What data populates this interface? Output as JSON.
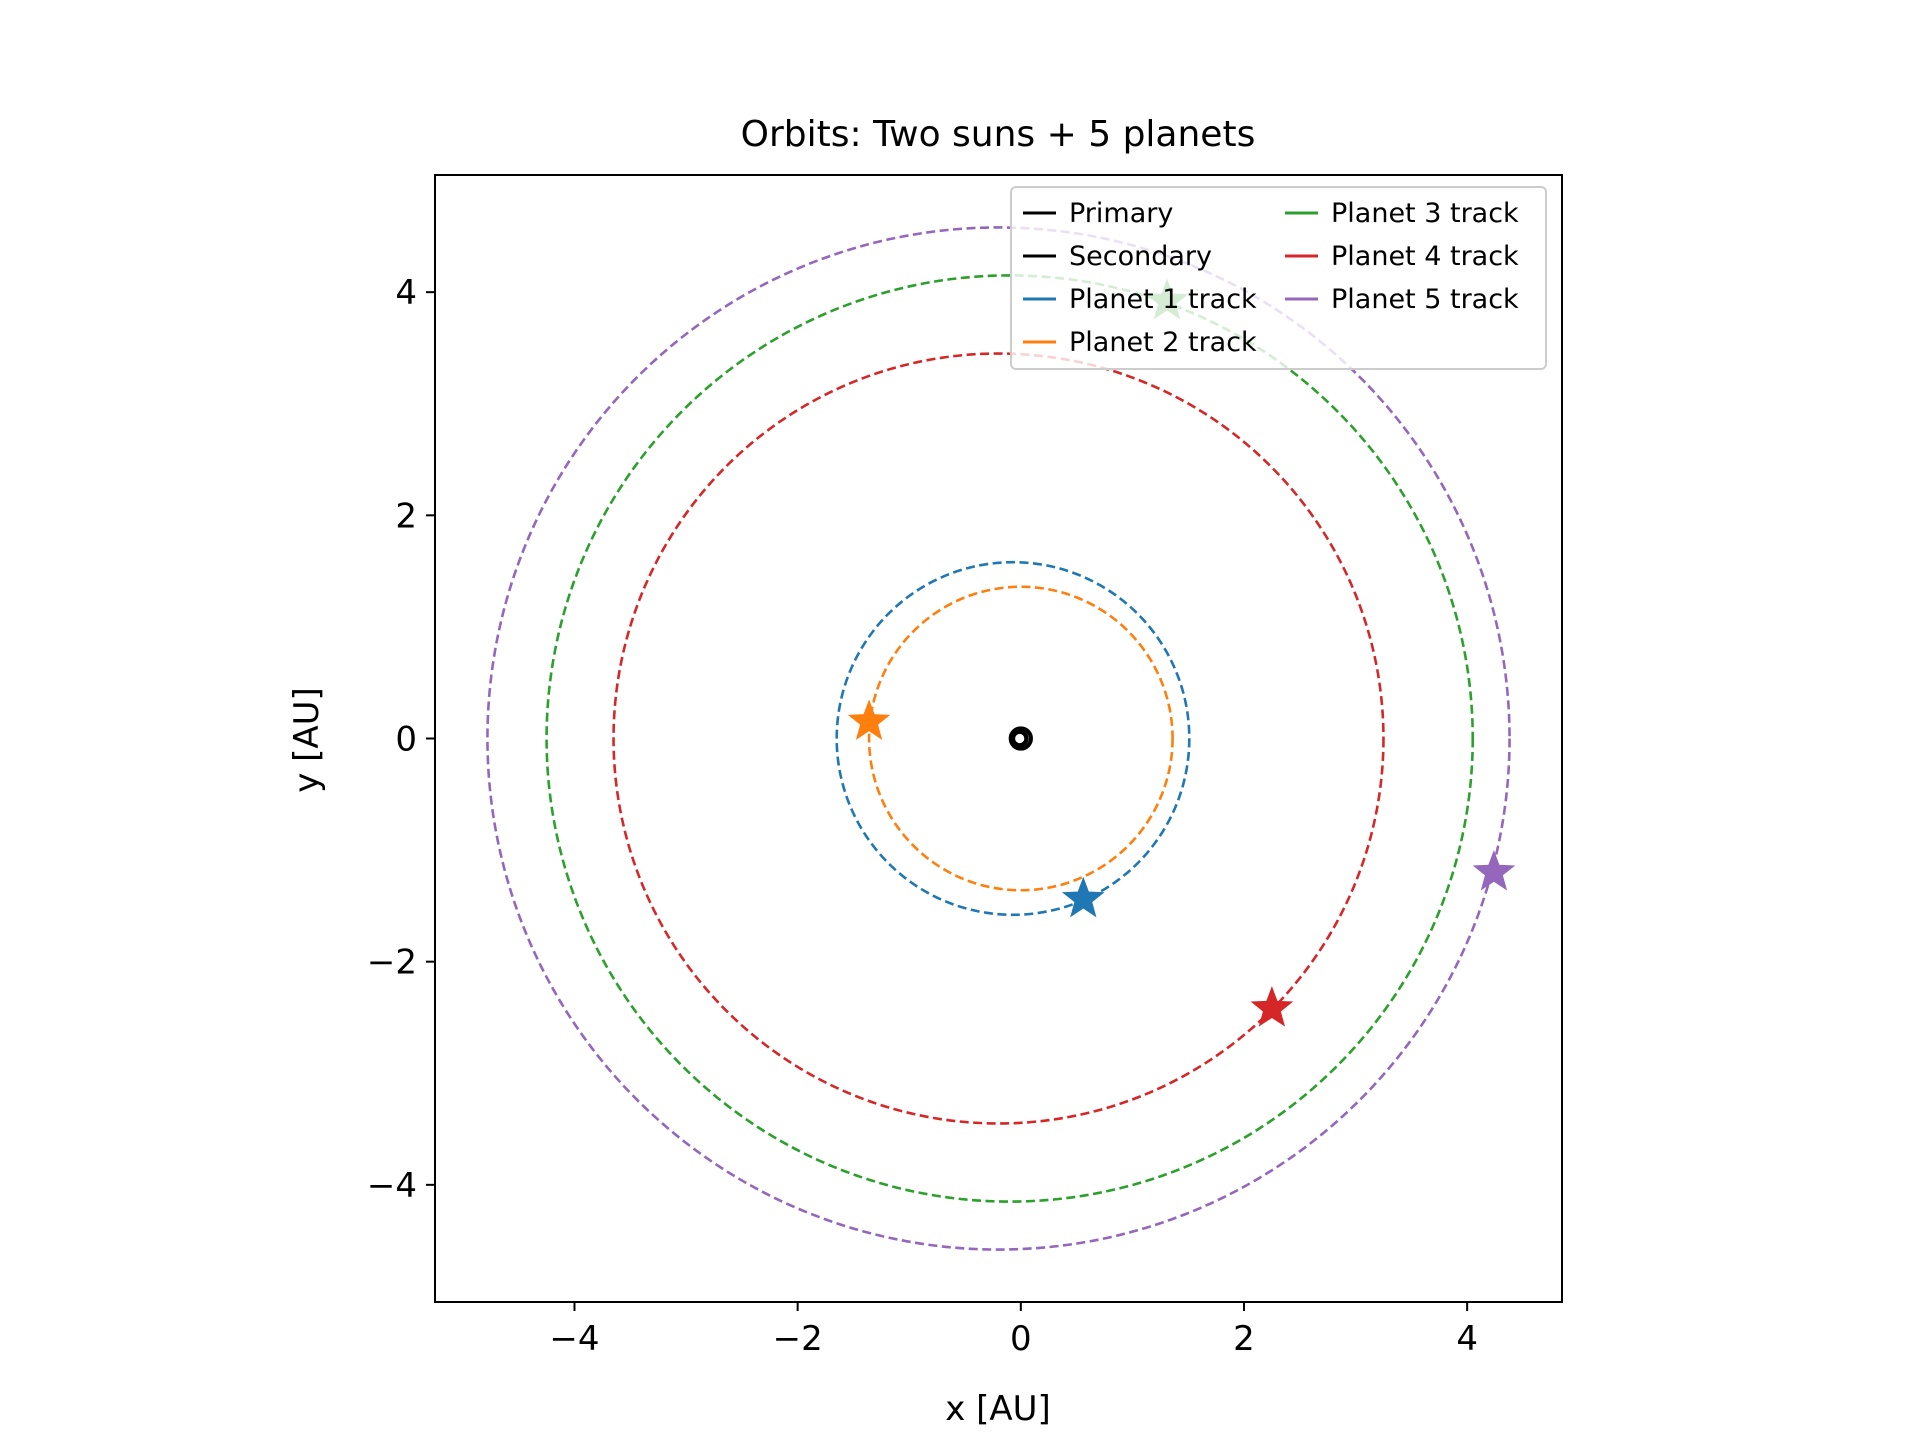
{
  "chart_data": {
    "type": "line",
    "title": "Orbits: Two suns + 5 planets",
    "xlabel": "x [AU]",
    "ylabel": "y [AU]",
    "xlim": [
      -5.25,
      4.85
    ],
    "ylim": [
      -5.05,
      5.05
    ],
    "xticks": [
      -4,
      -2,
      0,
      2,
      4
    ],
    "yticks": [
      -4,
      -2,
      0,
      2,
      4
    ],
    "xtick_labels": [
      "−4",
      "−2",
      "0",
      "2",
      "4"
    ],
    "ytick_labels": [
      "−4",
      "−2",
      "0",
      "2",
      "4"
    ],
    "grid": false,
    "legend_position": "top-right",
    "legend_columns": 2,
    "series": [
      {
        "name": "Primary",
        "color": "#000000",
        "style": "solid",
        "center": [
          -0.01,
          0.0
        ],
        "radius": 0.06
      },
      {
        "name": "Secondary",
        "color": "#000000",
        "style": "solid",
        "center": [
          0.0,
          0.0
        ],
        "radius": 0.09
      },
      {
        "name": "Planet 1 track",
        "color": "#1f77b4",
        "style": "dashed",
        "center": [
          -0.07,
          0.0
        ],
        "radius": 1.58,
        "current_position": [
          0.56,
          -1.44
        ]
      },
      {
        "name": "Planet 2 track",
        "color": "#ff7f0e",
        "style": "dashed",
        "center": [
          0.0,
          0.0
        ],
        "radius": 1.36,
        "current_position": [
          -1.36,
          0.15
        ]
      },
      {
        "name": "Planet 3 track",
        "color": "#2ca02c",
        "style": "dashed",
        "center": [
          -0.1,
          0.0
        ],
        "radius": 4.15,
        "current_position": [
          1.31,
          3.92
        ]
      },
      {
        "name": "Planet 4 track",
        "color": "#d62728",
        "style": "dashed",
        "center": [
          -0.2,
          0.0
        ],
        "radius": 3.45,
        "current_position": [
          2.25,
          -2.42
        ]
      },
      {
        "name": "Planet 5 track",
        "color": "#9467bd",
        "style": "dashed",
        "center": [
          -0.2,
          0.0
        ],
        "radius": 4.58,
        "current_position": [
          4.24,
          -1.2
        ]
      }
    ]
  }
}
